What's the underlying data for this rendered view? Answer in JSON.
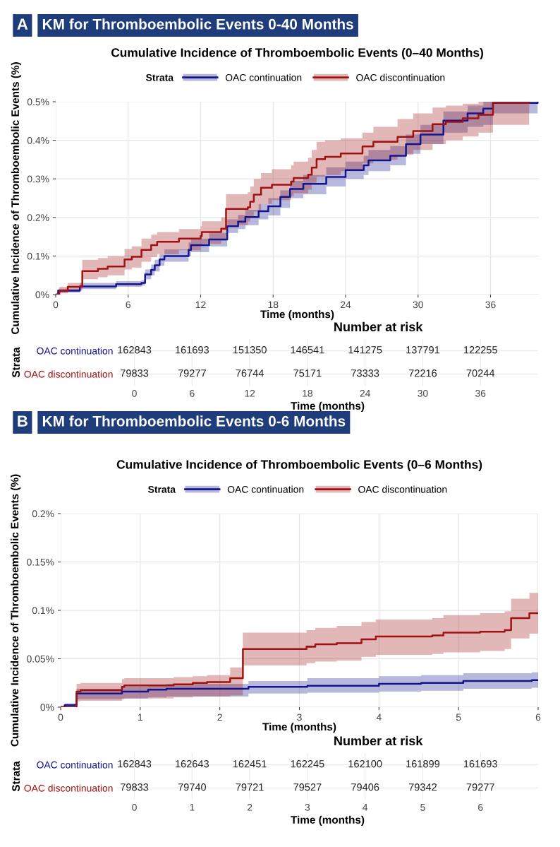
{
  "chart_data": [
    {
      "type": "step",
      "title": "KM for Thromboembolic Events 0-40 Months",
      "subtitle": "Cumulative Incidence of Thromboembolic Events (0–40 Months)",
      "annotations": [
        "A"
      ],
      "xlabel": "Time (months)",
      "ylabel": "Cumulative Incidence of Thromboembolic Events (%)",
      "legend_title": "Strata",
      "legend": "top",
      "grid": true,
      "xlim": [
        0,
        40
      ],
      "xticks": [
        0,
        6,
        12,
        18,
        24,
        30,
        36
      ],
      "ylim": [
        0,
        0.5
      ],
      "yticks": [
        {
          "value": 0,
          "label": "0%"
        },
        {
          "value": 0.1,
          "label": "0.1%"
        },
        {
          "value": 0.2,
          "label": "0.2%"
        },
        {
          "value": 0.3,
          "label": "0.3%"
        },
        {
          "value": 0.4,
          "label": "0.4%"
        },
        {
          "value": 0.5,
          "label": "0.5%"
        }
      ],
      "series": [
        {
          "name": "OAC continuation",
          "color": "#14148c",
          "x": [
            0,
            0.2,
            2,
            5,
            7.1,
            7.4,
            7.9,
            8.2,
            8.6,
            9,
            11,
            11.2,
            12.7,
            14.2,
            15.1,
            15.7,
            16.8,
            17.6,
            18.6,
            19.4,
            20.5,
            22.4,
            24,
            25.5,
            25.9,
            27.7,
            29,
            30.2,
            32.1,
            34.1,
            35.4,
            36.2,
            39.9
          ],
          "values": [
            0,
            0.01,
            0.021,
            0.027,
            0.03,
            0.052,
            0.064,
            0.076,
            0.091,
            0.1,
            0.116,
            0.128,
            0.143,
            0.177,
            0.189,
            0.201,
            0.216,
            0.229,
            0.253,
            0.274,
            0.287,
            0.305,
            0.323,
            0.335,
            0.348,
            0.36,
            0.39,
            0.415,
            0.451,
            0.47,
            0.482,
            0.497,
            0.5
          ],
          "lower": [
            0,
            0.005,
            0.014,
            0.02,
            0.023,
            0.04,
            0.05,
            0.06,
            0.075,
            0.085,
            0.1,
            0.11,
            0.125,
            0.16,
            0.17,
            0.18,
            0.195,
            0.205,
            0.225,
            0.25,
            0.26,
            0.28,
            0.3,
            0.31,
            0.32,
            0.335,
            0.365,
            0.39,
            0.42,
            0.435,
            0.44,
            0.47,
            0.47
          ],
          "upper": [
            0,
            0.015,
            0.03,
            0.035,
            0.037,
            0.065,
            0.078,
            0.09,
            0.105,
            0.117,
            0.135,
            0.145,
            0.16,
            0.195,
            0.207,
            0.22,
            0.235,
            0.25,
            0.27,
            0.295,
            0.31,
            0.33,
            0.345,
            0.36,
            0.375,
            0.385,
            0.415,
            0.44,
            0.475,
            0.49,
            0.5,
            0.5,
            0.5
          ]
        },
        {
          "name": "OAC discontinuation",
          "color": "#a01212",
          "x": [
            0,
            0.3,
            1,
            2.2,
            3.5,
            4.3,
            5.7,
            6.3,
            7.1,
            7.9,
            8.4,
            10.2,
            12,
            12.1,
            13.7,
            14.1,
            15.9,
            16.1,
            16.4,
            17,
            17.9,
            19.5,
            19.7,
            20.9,
            21.2,
            21.6,
            22.3,
            23.6,
            25.4,
            26.3,
            28.3,
            29.6,
            31.2,
            32.3,
            33.7,
            35,
            36.2,
            39.2
          ],
          "values": [
            0,
            0.01,
            0.02,
            0.061,
            0.067,
            0.073,
            0.091,
            0.098,
            0.116,
            0.128,
            0.137,
            0.145,
            0.152,
            0.162,
            0.171,
            0.222,
            0.226,
            0.241,
            0.259,
            0.277,
            0.285,
            0.293,
            0.302,
            0.311,
            0.329,
            0.351,
            0.357,
            0.366,
            0.384,
            0.396,
            0.409,
            0.424,
            0.442,
            0.448,
            0.457,
            0.466,
            0.497,
            0.5
          ],
          "lower": [
            0,
            0.003,
            0.01,
            0.04,
            0.045,
            0.05,
            0.065,
            0.07,
            0.085,
            0.097,
            0.105,
            0.115,
            0.125,
            0.132,
            0.14,
            0.18,
            0.19,
            0.2,
            0.215,
            0.235,
            0.245,
            0.255,
            0.263,
            0.272,
            0.29,
            0.305,
            0.31,
            0.32,
            0.34,
            0.35,
            0.362,
            0.375,
            0.39,
            0.4,
            0.41,
            0.42,
            0.44,
            0.49
          ],
          "upper": [
            0,
            0.02,
            0.03,
            0.09,
            0.095,
            0.1,
            0.118,
            0.125,
            0.145,
            0.155,
            0.162,
            0.17,
            0.177,
            0.19,
            0.2,
            0.26,
            0.265,
            0.28,
            0.3,
            0.315,
            0.325,
            0.335,
            0.345,
            0.355,
            0.375,
            0.396,
            0.4,
            0.405,
            0.42,
            0.435,
            0.455,
            0.47,
            0.485,
            0.49,
            0.495,
            0.5,
            0.5,
            0.5
          ]
        }
      ]
    },
    {
      "type": "heatmap",
      "title": "Number at risk",
      "xlabel": "Time (months)",
      "ylabel": "Strata",
      "data_labels": true,
      "grid": true,
      "categories": [
        "0",
        "6",
        "12",
        "18",
        "24",
        "30",
        "36"
      ],
      "y_categories": [
        "OAC continuation",
        "OAC discontinuation"
      ],
      "cells": [
        [
          162843,
          161693,
          151350,
          146541,
          141275,
          137791,
          122255
        ],
        [
          79833,
          79277,
          76744,
          75171,
          73333,
          72216,
          70244
        ]
      ]
    },
    {
      "type": "step",
      "title": "KM for Thromboembolic Events 0-6 Months",
      "subtitle": "Cumulative Incidence of Thromboembolic Events (0–6 Months)",
      "annotations": [
        "B"
      ],
      "xlabel": "Time (months)",
      "ylabel": "Cumulative Incidence of Thromboembolic Events (%)",
      "legend_title": "Strata",
      "legend": "top",
      "grid": true,
      "xlim": [
        0,
        6
      ],
      "xticks": [
        0,
        1,
        2,
        3,
        4,
        5,
        6
      ],
      "ylim": [
        0,
        0.2
      ],
      "yticks": [
        {
          "value": 0,
          "label": "0%"
        },
        {
          "value": 0.05,
          "label": "0.05%"
        },
        {
          "value": 0.1,
          "label": "0.1%"
        },
        {
          "value": 0.15,
          "label": "0.15%"
        },
        {
          "value": 0.2,
          "label": "0.2%"
        }
      ],
      "series": [
        {
          "name": "OAC continuation",
          "color": "#14148c",
          "x": [
            0,
            0.05,
            0.2,
            0.77,
            1.1,
            1.33,
            2.36,
            3.1,
            4.0,
            4.53,
            5.06,
            5.92,
            6
          ],
          "values": [
            0,
            0.002,
            0.014,
            0.016,
            0.018,
            0.019,
            0.021,
            0.022,
            0.024,
            0.025,
            0.027,
            0.028,
            0.028
          ],
          "lower": [
            0,
            0,
            0.008,
            0.009,
            0.01,
            0.011,
            0.014,
            0.015,
            0.016,
            0.017,
            0.019,
            0.02,
            0.02
          ],
          "upper": [
            0,
            0.004,
            0.019,
            0.021,
            0.023,
            0.024,
            0.027,
            0.03,
            0.032,
            0.033,
            0.035,
            0.036,
            0.036
          ]
        },
        {
          "name": "OAC discontinuation",
          "color": "#a01212",
          "x": [
            0,
            0.2,
            0.25,
            0.77,
            0.8,
            1.42,
            1.66,
            1.84,
            2.13,
            2.29,
            3.09,
            3.2,
            3.47,
            3.78,
            3.96,
            4.67,
            4.81,
            5.27,
            5.58,
            5.66,
            5.89,
            6
          ],
          "values": [
            0,
            0.016,
            0.0175,
            0.021,
            0.0225,
            0.0235,
            0.025,
            0.026,
            0.03,
            0.06,
            0.0625,
            0.065,
            0.066,
            0.07,
            0.073,
            0.074,
            0.077,
            0.078,
            0.0795,
            0.092,
            0.097,
            0.097
          ],
          "lower": [
            0,
            0.006,
            0.0066,
            0.008,
            0.009,
            0.01,
            0.011,
            0.011,
            0.012,
            0.043,
            0.0455,
            0.047,
            0.048,
            0.052,
            0.054,
            0.055,
            0.0565,
            0.058,
            0.06,
            0.071,
            0.076,
            0.076
          ],
          "upper": [
            0,
            0.024,
            0.025,
            0.029,
            0.03,
            0.031,
            0.032,
            0.033,
            0.041,
            0.077,
            0.0795,
            0.082,
            0.084,
            0.088,
            0.0905,
            0.092,
            0.095,
            0.097,
            0.099,
            0.112,
            0.118,
            0.118
          ]
        }
      ]
    },
    {
      "type": "heatmap",
      "title": "Number at risk",
      "xlabel": "Time (months)",
      "ylabel": "Strata",
      "data_labels": true,
      "grid": true,
      "categories": [
        "0",
        "1",
        "2",
        "3",
        "4",
        "5",
        "6"
      ],
      "y_categories": [
        "OAC continuation",
        "OAC discontinuation"
      ],
      "cells": [
        [
          162843,
          162643,
          162451,
          162245,
          162100,
          161899,
          161693
        ],
        [
          79833,
          79740,
          79721,
          79527,
          79406,
          79342,
          79277
        ]
      ]
    }
  ]
}
